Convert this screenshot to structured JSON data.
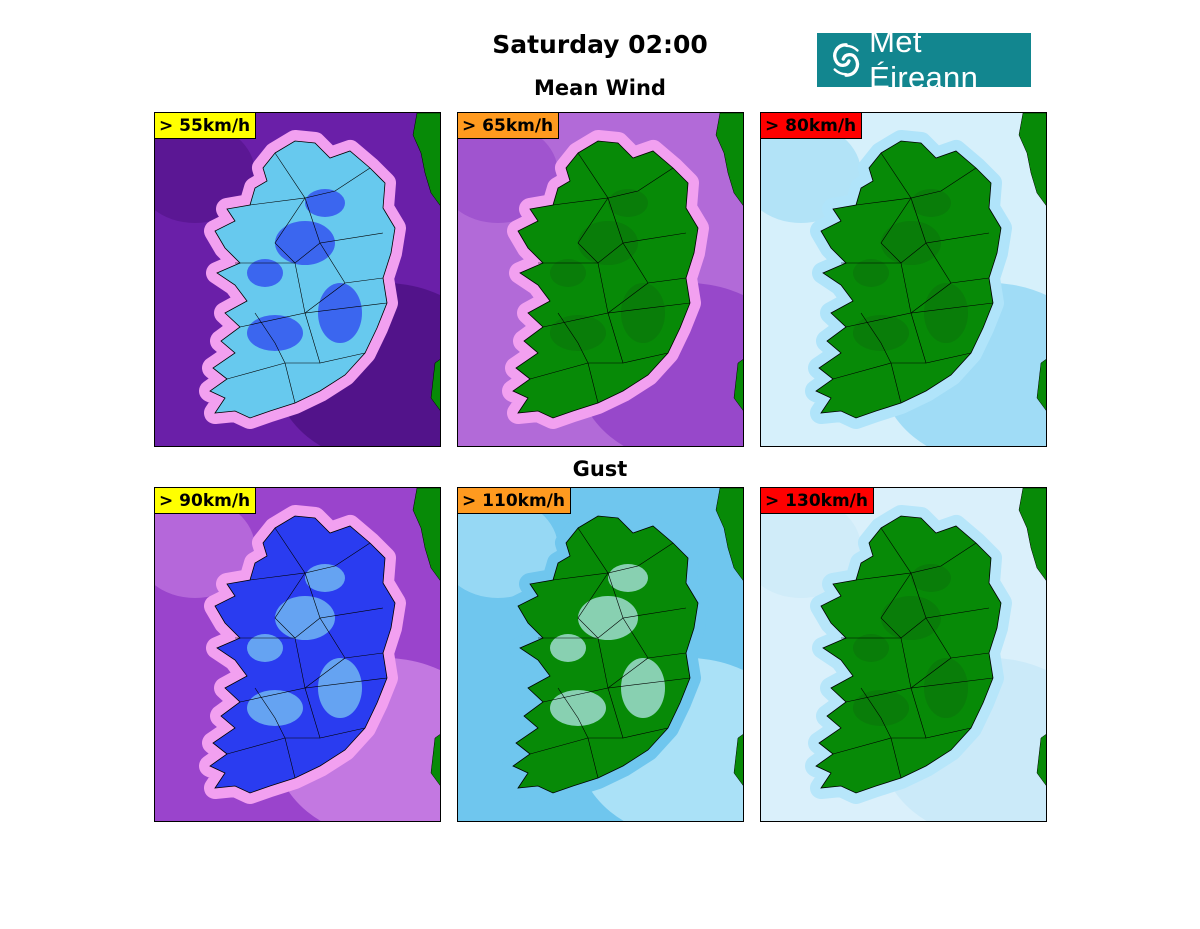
{
  "title": "Saturday 02:00",
  "logo": {
    "text": "Met Éireann",
    "icon": "met-eireann-swirl-icon",
    "bg": "#12868f"
  },
  "sections": {
    "mean": "Mean Wind",
    "gust": "Gust"
  },
  "panels": [
    {
      "label": "> 55km/h",
      "level": "yellow",
      "sea": "#6a1fa8",
      "sea2": "#4b1080",
      "land": "#67c9ee",
      "land2": "#2a3cf0",
      "halo": "#f2a0f0"
    },
    {
      "label": "> 65km/h",
      "level": "orange",
      "sea": "#b26ad8",
      "sea2": "#8e3ec6",
      "land": "#078a07",
      "land2": "#0a780a",
      "halo": "#f2a0f0"
    },
    {
      "label": "> 80km/h",
      "level": "red",
      "sea": "#d6f0fb",
      "sea2": "#8ed6f4",
      "land": "#078a07",
      "land2": "#0a780a",
      "halo": "#b0e4fa"
    },
    {
      "label": "> 90km/h",
      "level": "yellow",
      "sea": "#9a44cc",
      "sea2": "#d08ae8",
      "land": "#2a3cf0",
      "land2": "#7fcff2",
      "halo": "#f2a0f0"
    },
    {
      "label": "> 110km/h",
      "level": "orange",
      "sea": "#6fc6ee",
      "sea2": "#bdeaf9",
      "land": "#078a07",
      "land2": "#bfeefa",
      "halo": "#6fc6ee"
    },
    {
      "label": "> 130km/h",
      "level": "red",
      "sea": "#daf0fb",
      "sea2": "#c6e8f8",
      "land": "#078a07",
      "land2": "#0a780a",
      "halo": "#b7e6fa"
    }
  ],
  "colors": {
    "yellow": "#ffff00",
    "orange": "#ff9a1f",
    "red": "#ff0000"
  }
}
